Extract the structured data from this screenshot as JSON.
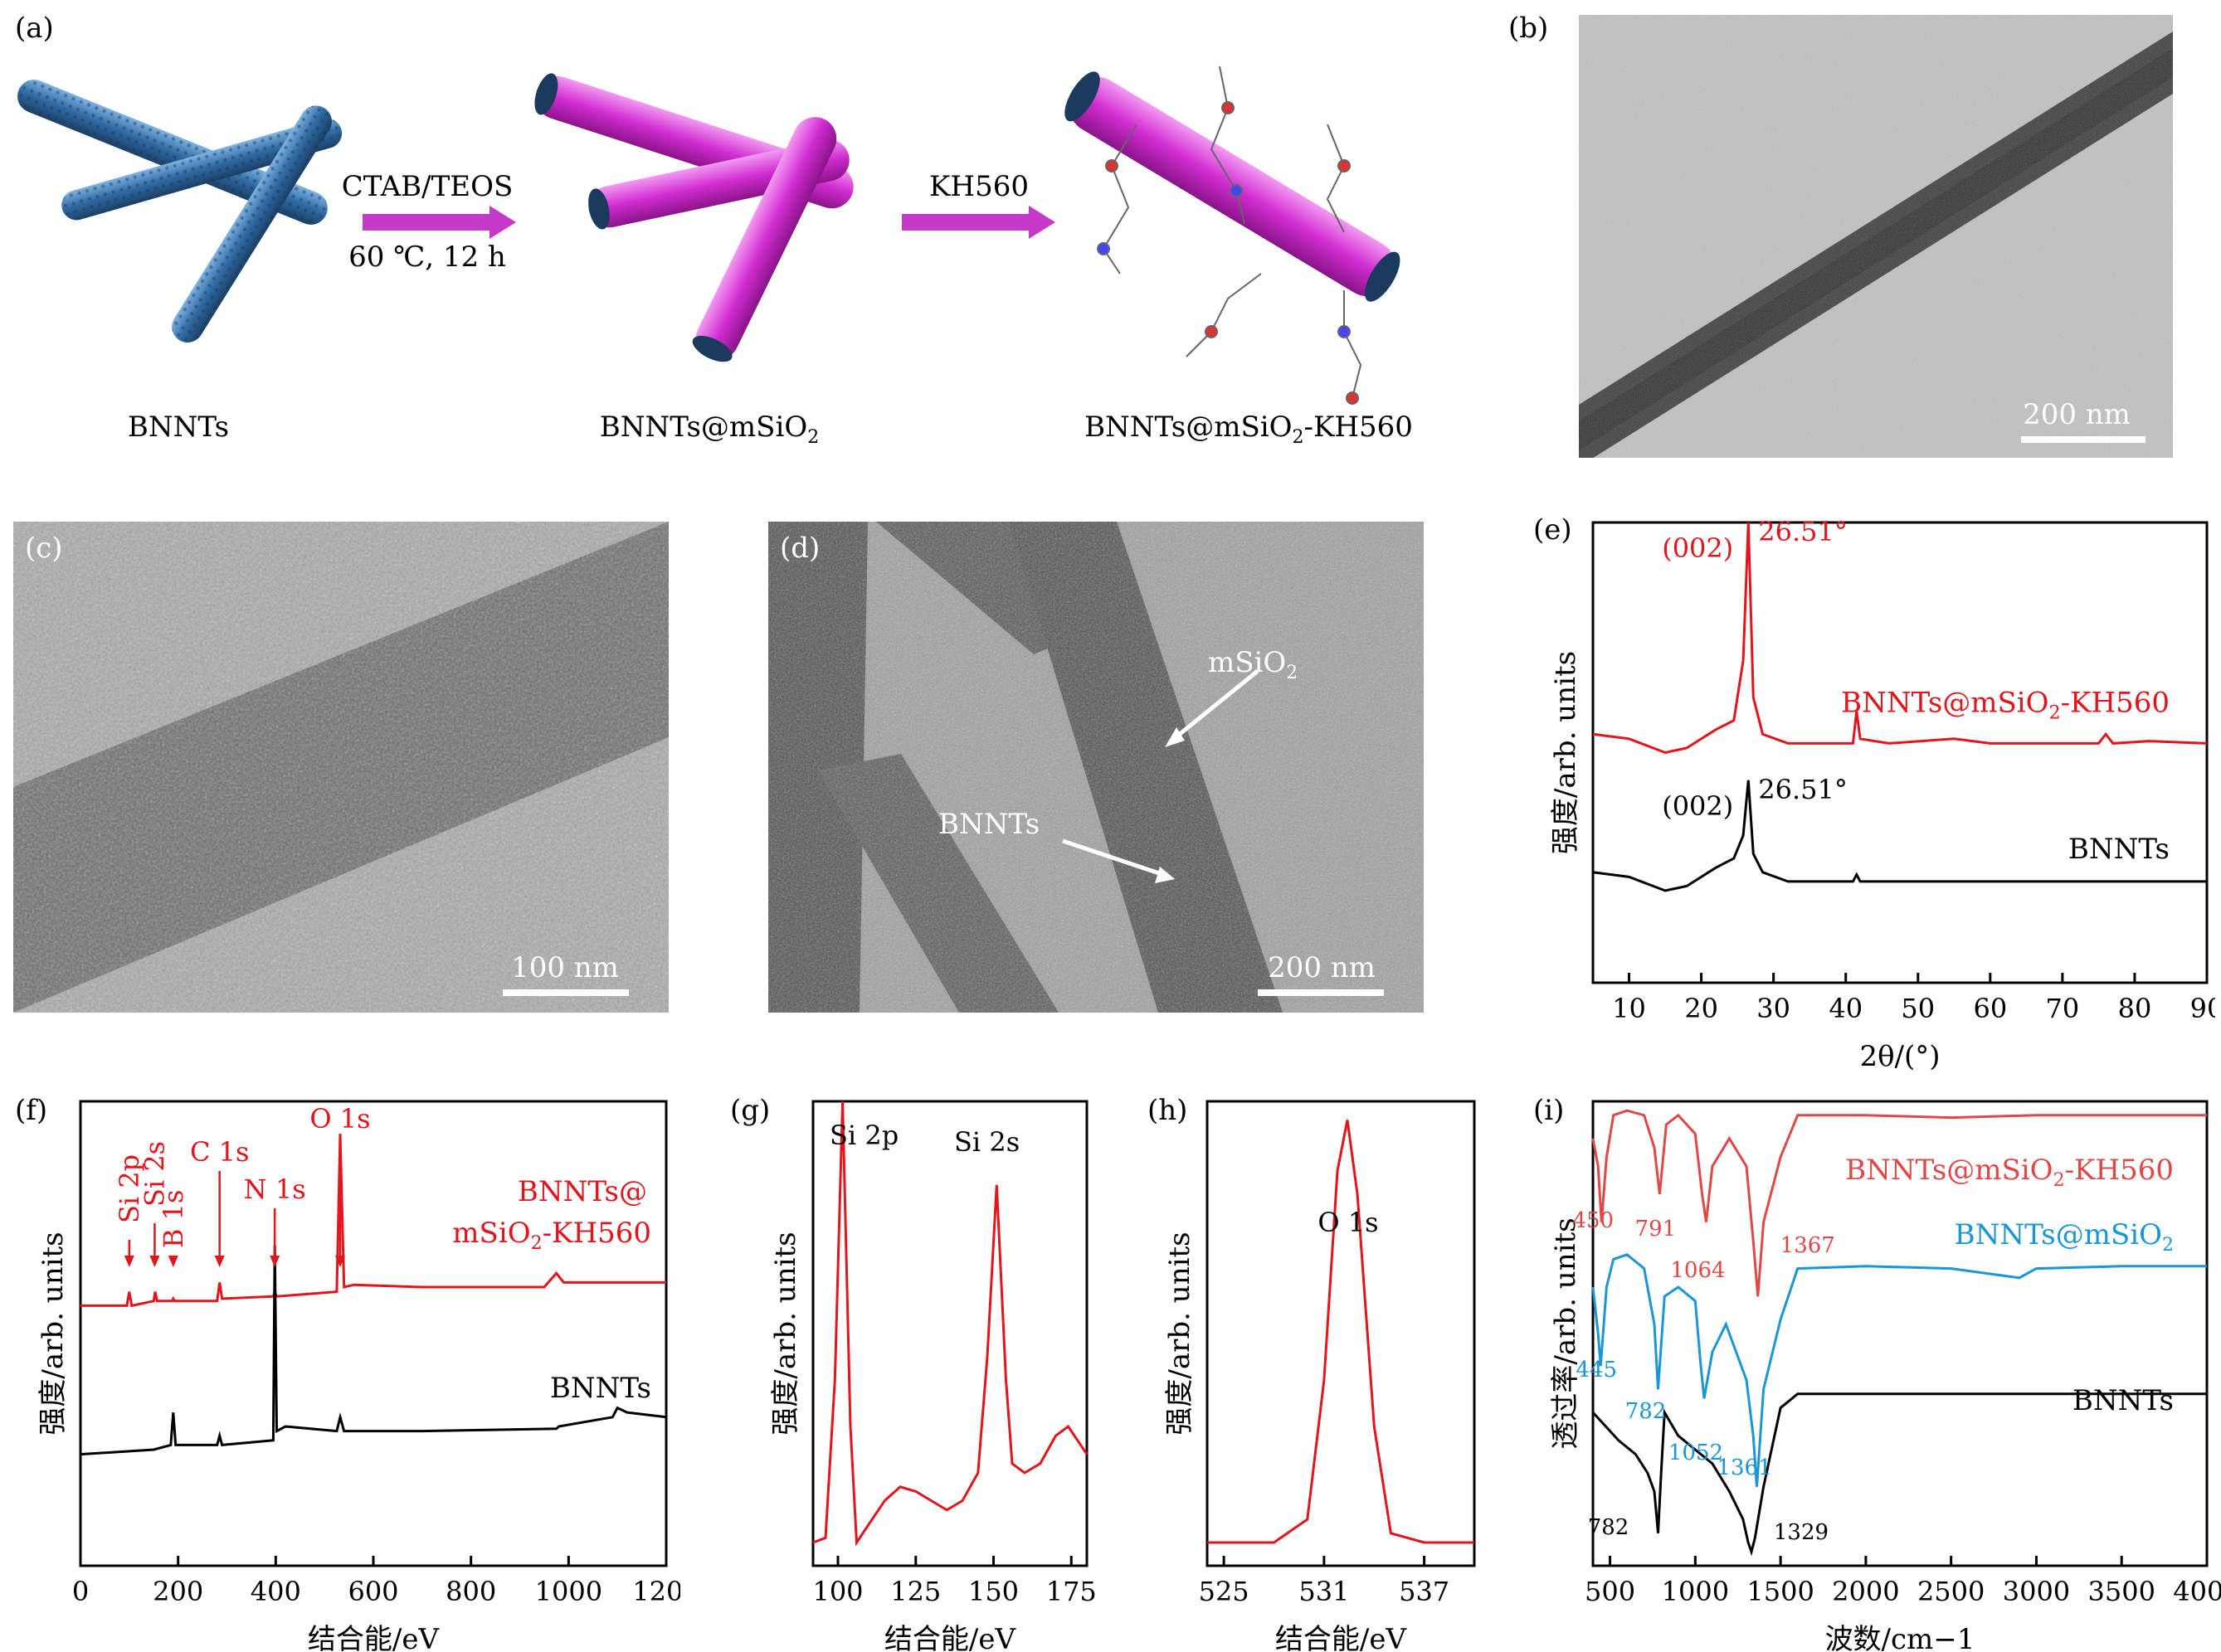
{
  "panel_labels": {
    "a": "(a)",
    "b": "(b)",
    "c": "(c)",
    "d": "(d)",
    "e": "(e)",
    "f": "(f)",
    "g": "(g)",
    "h": "(h)",
    "i": "(i)"
  },
  "schematic": {
    "step1": {
      "top": "CTAB/TEOS",
      "bottom": "60 ℃, 12 h"
    },
    "step2": {
      "top": "KH560"
    },
    "captions": {
      "bnnts": "BNNTs",
      "coated": "BNNTs@mSiO2",
      "grafted": "BNNTs@mSiO2-KH560"
    },
    "colors": {
      "bnnt": "#3f7fb8",
      "silica": "#d63cd6",
      "arrow": "#c53ac9"
    }
  },
  "tem": {
    "b": {
      "scale": "200 nm"
    },
    "c": {
      "scale": "100 nm"
    },
    "d": {
      "scale": "200 nm",
      "label_mSiO2": "mSiO2",
      "label_bnnts": "BNNTs"
    }
  },
  "ylabel_intensity": "强度/arb. units",
  "xlabel_binding": "结合能/eV",
  "chart_data": [
    {
      "id": "e",
      "type": "line",
      "xlabel": "2θ/(°)",
      "ylabel": "强度/arb. units",
      "xlim": [
        5,
        90
      ],
      "xticks": [
        10,
        20,
        30,
        40,
        50,
        60,
        70,
        80,
        90
      ],
      "series": [
        {
          "name": "BNNTs@mSiO2-KH560",
          "color": "#e3141b",
          "peak_x": 26.51,
          "peak_label": "26.51°",
          "plane": "(002)",
          "x": [
            5,
            10,
            15,
            18,
            22,
            24.5,
            25.8,
            26.51,
            27.2,
            28.5,
            32,
            38,
            41,
            41.5,
            42,
            46,
            55,
            60,
            75,
            76,
            77,
            82,
            90
          ],
          "y": [
            0.54,
            0.53,
            0.5,
            0.51,
            0.55,
            0.57,
            0.7,
            1.0,
            0.62,
            0.54,
            0.52,
            0.52,
            0.52,
            0.59,
            0.53,
            0.52,
            0.53,
            0.52,
            0.52,
            0.54,
            0.52,
            0.525,
            0.52
          ]
        },
        {
          "name": "BNNTs",
          "color": "#000000",
          "peak_x": 26.51,
          "peak_label": "26.51°",
          "plane": "(002)",
          "x": [
            5,
            10,
            15,
            18,
            22,
            24.5,
            25.8,
            26.51,
            27.2,
            28.5,
            32,
            38,
            41,
            41.5,
            42,
            46,
            55,
            60,
            75,
            90
          ],
          "y": [
            0.24,
            0.23,
            0.2,
            0.21,
            0.25,
            0.27,
            0.32,
            0.44,
            0.28,
            0.24,
            0.22,
            0.22,
            0.22,
            0.235,
            0.22,
            0.22,
            0.22,
            0.22,
            0.22,
            0.22
          ]
        }
      ]
    },
    {
      "id": "f",
      "type": "line",
      "xlabel": "结合能/eV",
      "ylabel": "强度/arb. units",
      "xlim": [
        0,
        1200
      ],
      "xticks": [
        0,
        200,
        400,
        600,
        800,
        1000,
        1200
      ],
      "annotations": [
        "Si 2p",
        "Si 2s",
        "B 1s",
        "C 1s",
        "N 1s",
        "O 1s"
      ],
      "annotation_x": [
        100,
        152,
        190,
        285,
        398,
        532
      ],
      "series": [
        {
          "name": "BNNTs@\nmSiO2-KH560",
          "color": "#e3141b",
          "x": [
            0,
            95,
            100,
            105,
            150,
            153,
            157,
            188,
            190,
            193,
            280,
            285,
            290,
            395,
            398,
            402,
            525,
            532,
            540,
            560,
            700,
            950,
            975,
            990,
            1100,
            1200
          ],
          "y": [
            0.56,
            0.56,
            0.59,
            0.56,
            0.57,
            0.59,
            0.57,
            0.57,
            0.575,
            0.57,
            0.57,
            0.61,
            0.575,
            0.58,
            0.59,
            0.58,
            0.59,
            0.93,
            0.6,
            0.605,
            0.6,
            0.6,
            0.63,
            0.61,
            0.61,
            0.61
          ]
        },
        {
          "name": "BNNTs",
          "color": "#000000",
          "x": [
            0,
            150,
            185,
            190,
            195,
            280,
            285,
            290,
            395,
            398,
            402,
            420,
            525,
            532,
            540,
            700,
            975,
            980,
            1090,
            1100,
            1120,
            1200
          ],
          "y": [
            0.24,
            0.25,
            0.26,
            0.33,
            0.26,
            0.26,
            0.28,
            0.26,
            0.27,
            0.69,
            0.29,
            0.3,
            0.29,
            0.32,
            0.29,
            0.29,
            0.295,
            0.3,
            0.32,
            0.34,
            0.33,
            0.32
          ]
        }
      ]
    },
    {
      "id": "g",
      "type": "line",
      "xlabel": "结合能/eV",
      "ylabel": "强度/arb. units",
      "xlim": [
        92,
        180
      ],
      "xticks": [
        100,
        125,
        150,
        175
      ],
      "annotations": [
        "Si 2p",
        "Si 2s"
      ],
      "series": [
        {
          "name": "",
          "color": "#e3141b",
          "x": [
            92,
            96,
            99,
            101.5,
            104,
            106,
            110,
            115,
            120,
            125,
            130,
            135,
            140,
            145,
            148,
            151,
            154,
            156,
            160,
            165,
            170,
            174,
            177,
            180
          ],
          "y": [
            0.05,
            0.06,
            0.4,
            1.0,
            0.3,
            0.05,
            0.09,
            0.14,
            0.17,
            0.16,
            0.14,
            0.12,
            0.14,
            0.2,
            0.45,
            0.82,
            0.4,
            0.22,
            0.2,
            0.22,
            0.28,
            0.3,
            0.27,
            0.24
          ]
        }
      ]
    },
    {
      "id": "h",
      "type": "line",
      "xlabel": "结合能/eV",
      "ylabel": "强度/arb. units",
      "xlim": [
        524,
        540
      ],
      "xticks": [
        525,
        531,
        537
      ],
      "annotations": [
        "O 1s"
      ],
      "series": [
        {
          "name": "",
          "color": "#e3141b",
          "x": [
            524,
            528,
            530,
            531,
            531.8,
            532.4,
            533,
            534,
            535,
            537,
            540
          ],
          "y": [
            0.05,
            0.05,
            0.1,
            0.4,
            0.85,
            0.96,
            0.8,
            0.3,
            0.07,
            0.05,
            0.05
          ]
        }
      ]
    },
    {
      "id": "i",
      "type": "line",
      "xlabel": "波数/cm−1",
      "ylabel": "透过率/arb. units",
      "xlim": [
        400,
        4000
      ],
      "xticks": [
        500,
        1000,
        1500,
        2000,
        2500,
        3000,
        3500,
        4000
      ],
      "series": [
        {
          "name": "BNNTs@mSiO2-KH560",
          "color": "#e04848",
          "x": [
            400,
            430,
            450,
            480,
            520,
            600,
            700,
            760,
            791,
            830,
            900,
            1000,
            1040,
            1064,
            1100,
            1200,
            1300,
            1340,
            1367,
            1400,
            1500,
            1600,
            2000,
            2500,
            3000,
            3500,
            4000
          ],
          "y": [
            0.92,
            0.86,
            0.74,
            0.88,
            0.97,
            0.98,
            0.97,
            0.9,
            0.8,
            0.95,
            0.97,
            0.93,
            0.8,
            0.74,
            0.86,
            0.92,
            0.86,
            0.7,
            0.58,
            0.74,
            0.88,
            0.97,
            0.97,
            0.965,
            0.97,
            0.97,
            0.97
          ]
        },
        {
          "name": "BNNTs@mSiO2",
          "color": "#1a96d6",
          "x": [
            400,
            430,
            445,
            480,
            520,
            600,
            700,
            760,
            782,
            820,
            900,
            1000,
            1030,
            1052,
            1100,
            1180,
            1250,
            1300,
            1340,
            1361,
            1400,
            1500,
            1600,
            2000,
            2500,
            2900,
            3000,
            3500,
            4000
          ],
          "y": [
            0.6,
            0.5,
            0.43,
            0.6,
            0.66,
            0.67,
            0.64,
            0.52,
            0.38,
            0.58,
            0.6,
            0.57,
            0.44,
            0.36,
            0.46,
            0.52,
            0.45,
            0.4,
            0.28,
            0.17,
            0.38,
            0.53,
            0.64,
            0.645,
            0.64,
            0.62,
            0.64,
            0.645,
            0.645
          ]
        },
        {
          "name": "BNNTs",
          "color": "#000000",
          "x": [
            400,
            450,
            550,
            650,
            720,
            760,
            782,
            800,
            820,
            900,
            1000,
            1100,
            1200,
            1280,
            1310,
            1329,
            1350,
            1400,
            1500,
            1600,
            2000,
            2500,
            3000,
            3500,
            4000
          ],
          "y": [
            0.33,
            0.31,
            0.27,
            0.24,
            0.2,
            0.16,
            0.07,
            0.2,
            0.33,
            0.28,
            0.25,
            0.22,
            0.16,
            0.1,
            0.05,
            0.03,
            0.06,
            0.17,
            0.34,
            0.37,
            0.37,
            0.37,
            0.37,
            0.37,
            0.37
          ]
        }
      ],
      "annotations_red": [
        "450",
        "791",
        "1064",
        "1367"
      ],
      "annotations_blue": [
        "445",
        "782",
        "1052",
        "1361"
      ],
      "annotations_black": [
        "782",
        "1329"
      ]
    }
  ]
}
